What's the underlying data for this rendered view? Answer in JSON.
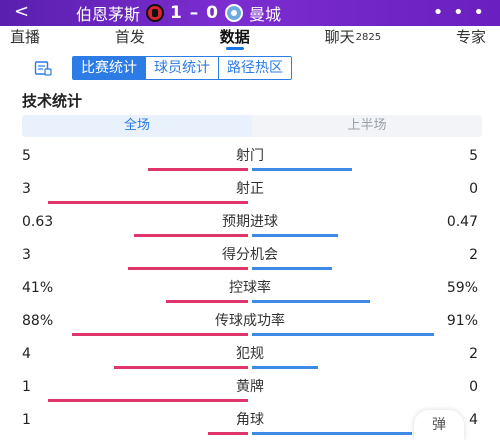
{
  "header": {
    "back": "<",
    "home_team": "伯恩茅斯",
    "score": "1 – 0",
    "away_team": "曼城",
    "more": "• • •"
  },
  "nav": {
    "tabs": [
      {
        "label": "直播"
      },
      {
        "label": "首发"
      },
      {
        "label": "数据"
      },
      {
        "label": "聊天",
        "count": "2825"
      },
      {
        "label": "专家"
      }
    ],
    "active": "数据"
  },
  "segment": {
    "tabs": [
      "比赛统计",
      "球员统计",
      "路径热区"
    ],
    "active": "比赛统计"
  },
  "section_title": "技术统计",
  "period": {
    "tabs": [
      "全场",
      "上半场"
    ],
    "active": "全场"
  },
  "colors": {
    "home": "#e0356b",
    "away": "#3d8be6",
    "accent": "#2d7be5",
    "header": "#6a1fbf"
  },
  "stats": [
    {
      "label": "射门",
      "home": "5",
      "away": "5",
      "home_share": 0.5,
      "away_share": 0.5
    },
    {
      "label": "射正",
      "home": "3",
      "away": "0",
      "home_share": 1.0,
      "away_share": 0.0
    },
    {
      "label": "预期进球",
      "home": "0.63",
      "away": "0.47",
      "home_share": 0.57,
      "away_share": 0.43
    },
    {
      "label": "得分机会",
      "home": "3",
      "away": "2",
      "home_share": 0.6,
      "away_share": 0.4
    },
    {
      "label": "控球率",
      "home": "41%",
      "away": "59%",
      "home_share": 0.41,
      "away_share": 0.59
    },
    {
      "label": "传球成功率",
      "home": "88%",
      "away": "91%",
      "home_share": 0.88,
      "away_share": 0.91
    },
    {
      "label": "犯规",
      "home": "4",
      "away": "2",
      "home_share": 0.67,
      "away_share": 0.33
    },
    {
      "label": "黄牌",
      "home": "1",
      "away": "0",
      "home_share": 1.0,
      "away_share": 0.0
    },
    {
      "label": "角球",
      "home": "1",
      "away": "4",
      "home_share": 0.2,
      "away_share": 0.8
    }
  ],
  "pill": "弹"
}
